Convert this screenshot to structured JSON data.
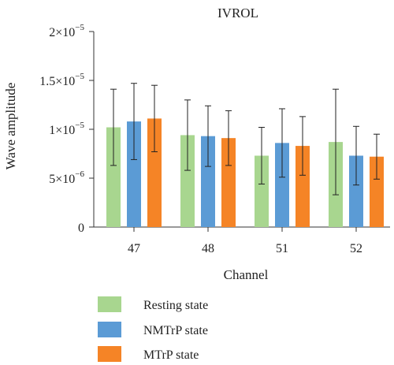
{
  "chart_data": {
    "type": "bar",
    "title": "IVROL",
    "xlabel": "Channel",
    "ylabel": "Wave amplitude",
    "categories": [
      "47",
      "48",
      "51",
      "52"
    ],
    "ylim": [
      0,
      2e-05
    ],
    "yticks": [
      {
        "value": 0,
        "label": "0"
      },
      {
        "value": 5e-06,
        "label": "5×10",
        "exp": "−6"
      },
      {
        "value": 1e-05,
        "label": "1×10",
        "exp": "−5"
      },
      {
        "value": 1.5e-05,
        "label": "1.5×10",
        "exp": "−5"
      },
      {
        "value": 2e-05,
        "label": "2×10",
        "exp": "−5"
      }
    ],
    "series": [
      {
        "name": "Resting state",
        "color": "#a8d68f",
        "values": [
          1.02e-05,
          9.4e-06,
          7.3e-06,
          8.7e-06
        ],
        "errors": [
          3.9e-06,
          3.6e-06,
          2.9e-06,
          5.4e-06
        ]
      },
      {
        "name": "NMTrP state",
        "color": "#5b9bd5",
        "values": [
          1.08e-05,
          9.3e-06,
          8.6e-06,
          7.3e-06
        ],
        "errors": [
          3.9e-06,
          3.1e-06,
          3.5e-06,
          3e-06
        ]
      },
      {
        "name": "MTrP state",
        "color": "#f58426",
        "values": [
          1.11e-05,
          9.1e-06,
          8.3e-06,
          7.2e-06
        ],
        "errors": [
          3.4e-06,
          2.8e-06,
          3e-06,
          2.3e-06
        ]
      }
    ],
    "grid": false,
    "legend_position": "bottom-left"
  }
}
